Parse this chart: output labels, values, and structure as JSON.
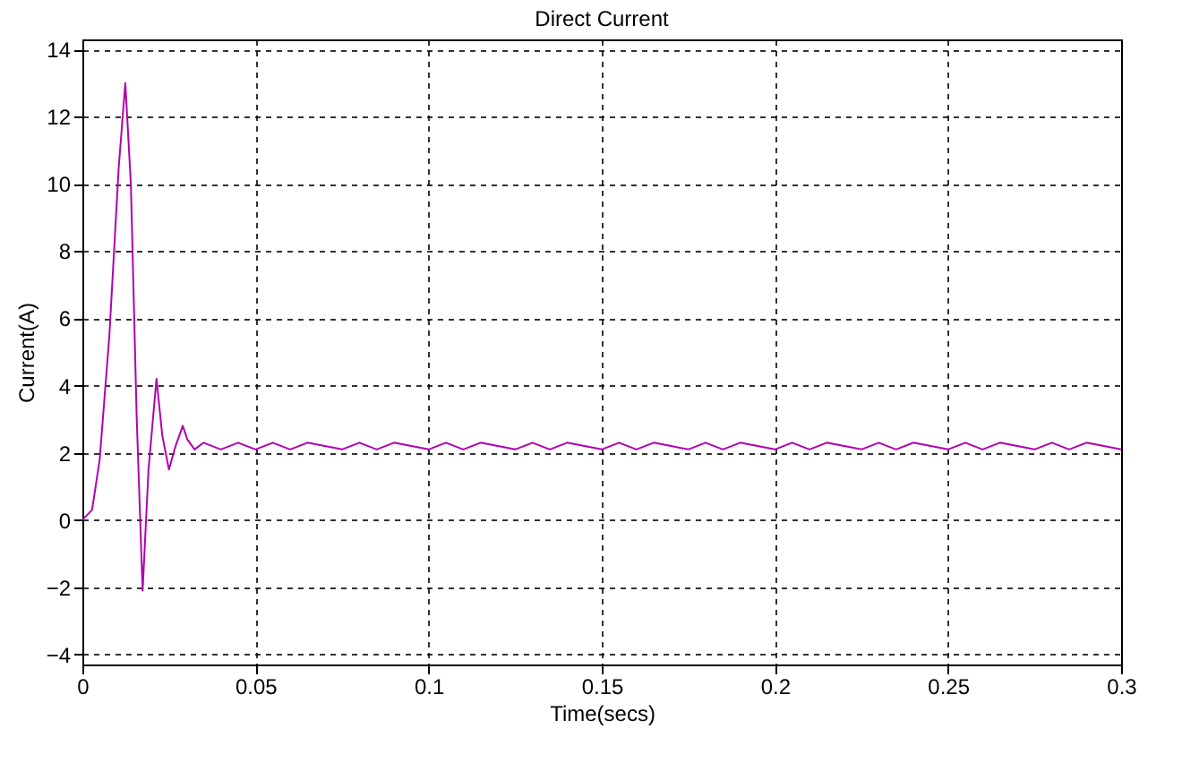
{
  "chart_data": {
    "type": "line",
    "title": "Direct Current",
    "xlabel": "Time(secs)",
    "ylabel": "Current(A)",
    "xlim": [
      0,
      0.3
    ],
    "ylim": [
      -4.3,
      14.3
    ],
    "xticks": [
      0,
      0.05,
      0.1,
      0.15,
      0.2,
      0.25,
      0.3
    ],
    "yticks": [
      -4,
      -2,
      0,
      2,
      4,
      6,
      8,
      10,
      12,
      14
    ],
    "grid": true,
    "legend": false,
    "series": [
      {
        "color": "#b000b0",
        "x": [
          0,
          0.0028,
          0.005,
          0.0078,
          0.0105,
          0.0124,
          0.014,
          0.0157,
          0.0174,
          0.0191,
          0.0214,
          0.0231,
          0.025,
          0.0269,
          0.029,
          0.0303,
          0.0324,
          0.035,
          0.04,
          0.045,
          0.05,
          0.055,
          0.06,
          0.065,
          0.07,
          0.075,
          0.08,
          0.085,
          0.09,
          0.095,
          0.1,
          0.105,
          0.11,
          0.115,
          0.12,
          0.125,
          0.13,
          0.135,
          0.14,
          0.145,
          0.15,
          0.155,
          0.16,
          0.165,
          0.17,
          0.175,
          0.18,
          0.185,
          0.19,
          0.195,
          0.2,
          0.205,
          0.21,
          0.215,
          0.22,
          0.225,
          0.23,
          0.235,
          0.24,
          0.245,
          0.25,
          0.255,
          0.26,
          0.265,
          0.27,
          0.275,
          0.28,
          0.285,
          0.29,
          0.295,
          0.3
        ],
        "values": [
          0,
          0.3,
          1.8,
          5.5,
          10.5,
          13,
          10,
          3,
          -2.1,
          1.5,
          4.2,
          2.5,
          1.5,
          2.2,
          2.8,
          2.4,
          2.1,
          2.3,
          2.1,
          2.3,
          2.1,
          2.3,
          2.1,
          2.3,
          2.2,
          2.1,
          2.3,
          2.1,
          2.3,
          2.2,
          2.1,
          2.3,
          2.1,
          2.3,
          2.2,
          2.1,
          2.3,
          2.1,
          2.3,
          2.2,
          2.1,
          2.3,
          2.1,
          2.3,
          2.2,
          2.1,
          2.3,
          2.1,
          2.3,
          2.2,
          2.1,
          2.3,
          2.1,
          2.3,
          2.2,
          2.1,
          2.3,
          2.1,
          2.3,
          2.2,
          2.1,
          2.3,
          2.1,
          2.3,
          2.2,
          2.1,
          2.3,
          2.1,
          2.3,
          2.2,
          2.1
        ]
      }
    ]
  }
}
